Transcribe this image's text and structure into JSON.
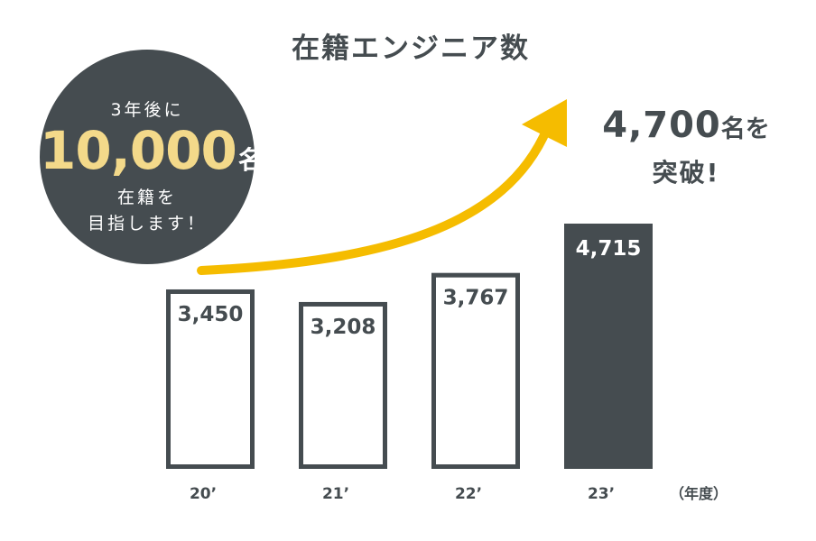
{
  "title": "在籍エンジニア数",
  "goal": {
    "pre": "3年後に",
    "number": "10,000",
    "unit": "名",
    "line1": "在籍を",
    "line2": "目指します！"
  },
  "callout": {
    "number": "4,700",
    "unit": "名を",
    "line2": "突破!"
  },
  "unit_label": "（年度）",
  "colors": {
    "dark": "#454c50",
    "accent": "#f5bc00",
    "highlight": "#f3d98a",
    "background": "#ffffff"
  },
  "chart_data": {
    "type": "bar",
    "categories": [
      "20’",
      "21’",
      "22’",
      "23’"
    ],
    "values": [
      3450,
      3208,
      3767,
      4715
    ],
    "value_labels": [
      "3,450",
      "3,208",
      "3,767",
      "4,715"
    ],
    "highlighted_index": 3,
    "ylim": [
      0,
      4715
    ],
    "grid": false,
    "legend": "none"
  }
}
